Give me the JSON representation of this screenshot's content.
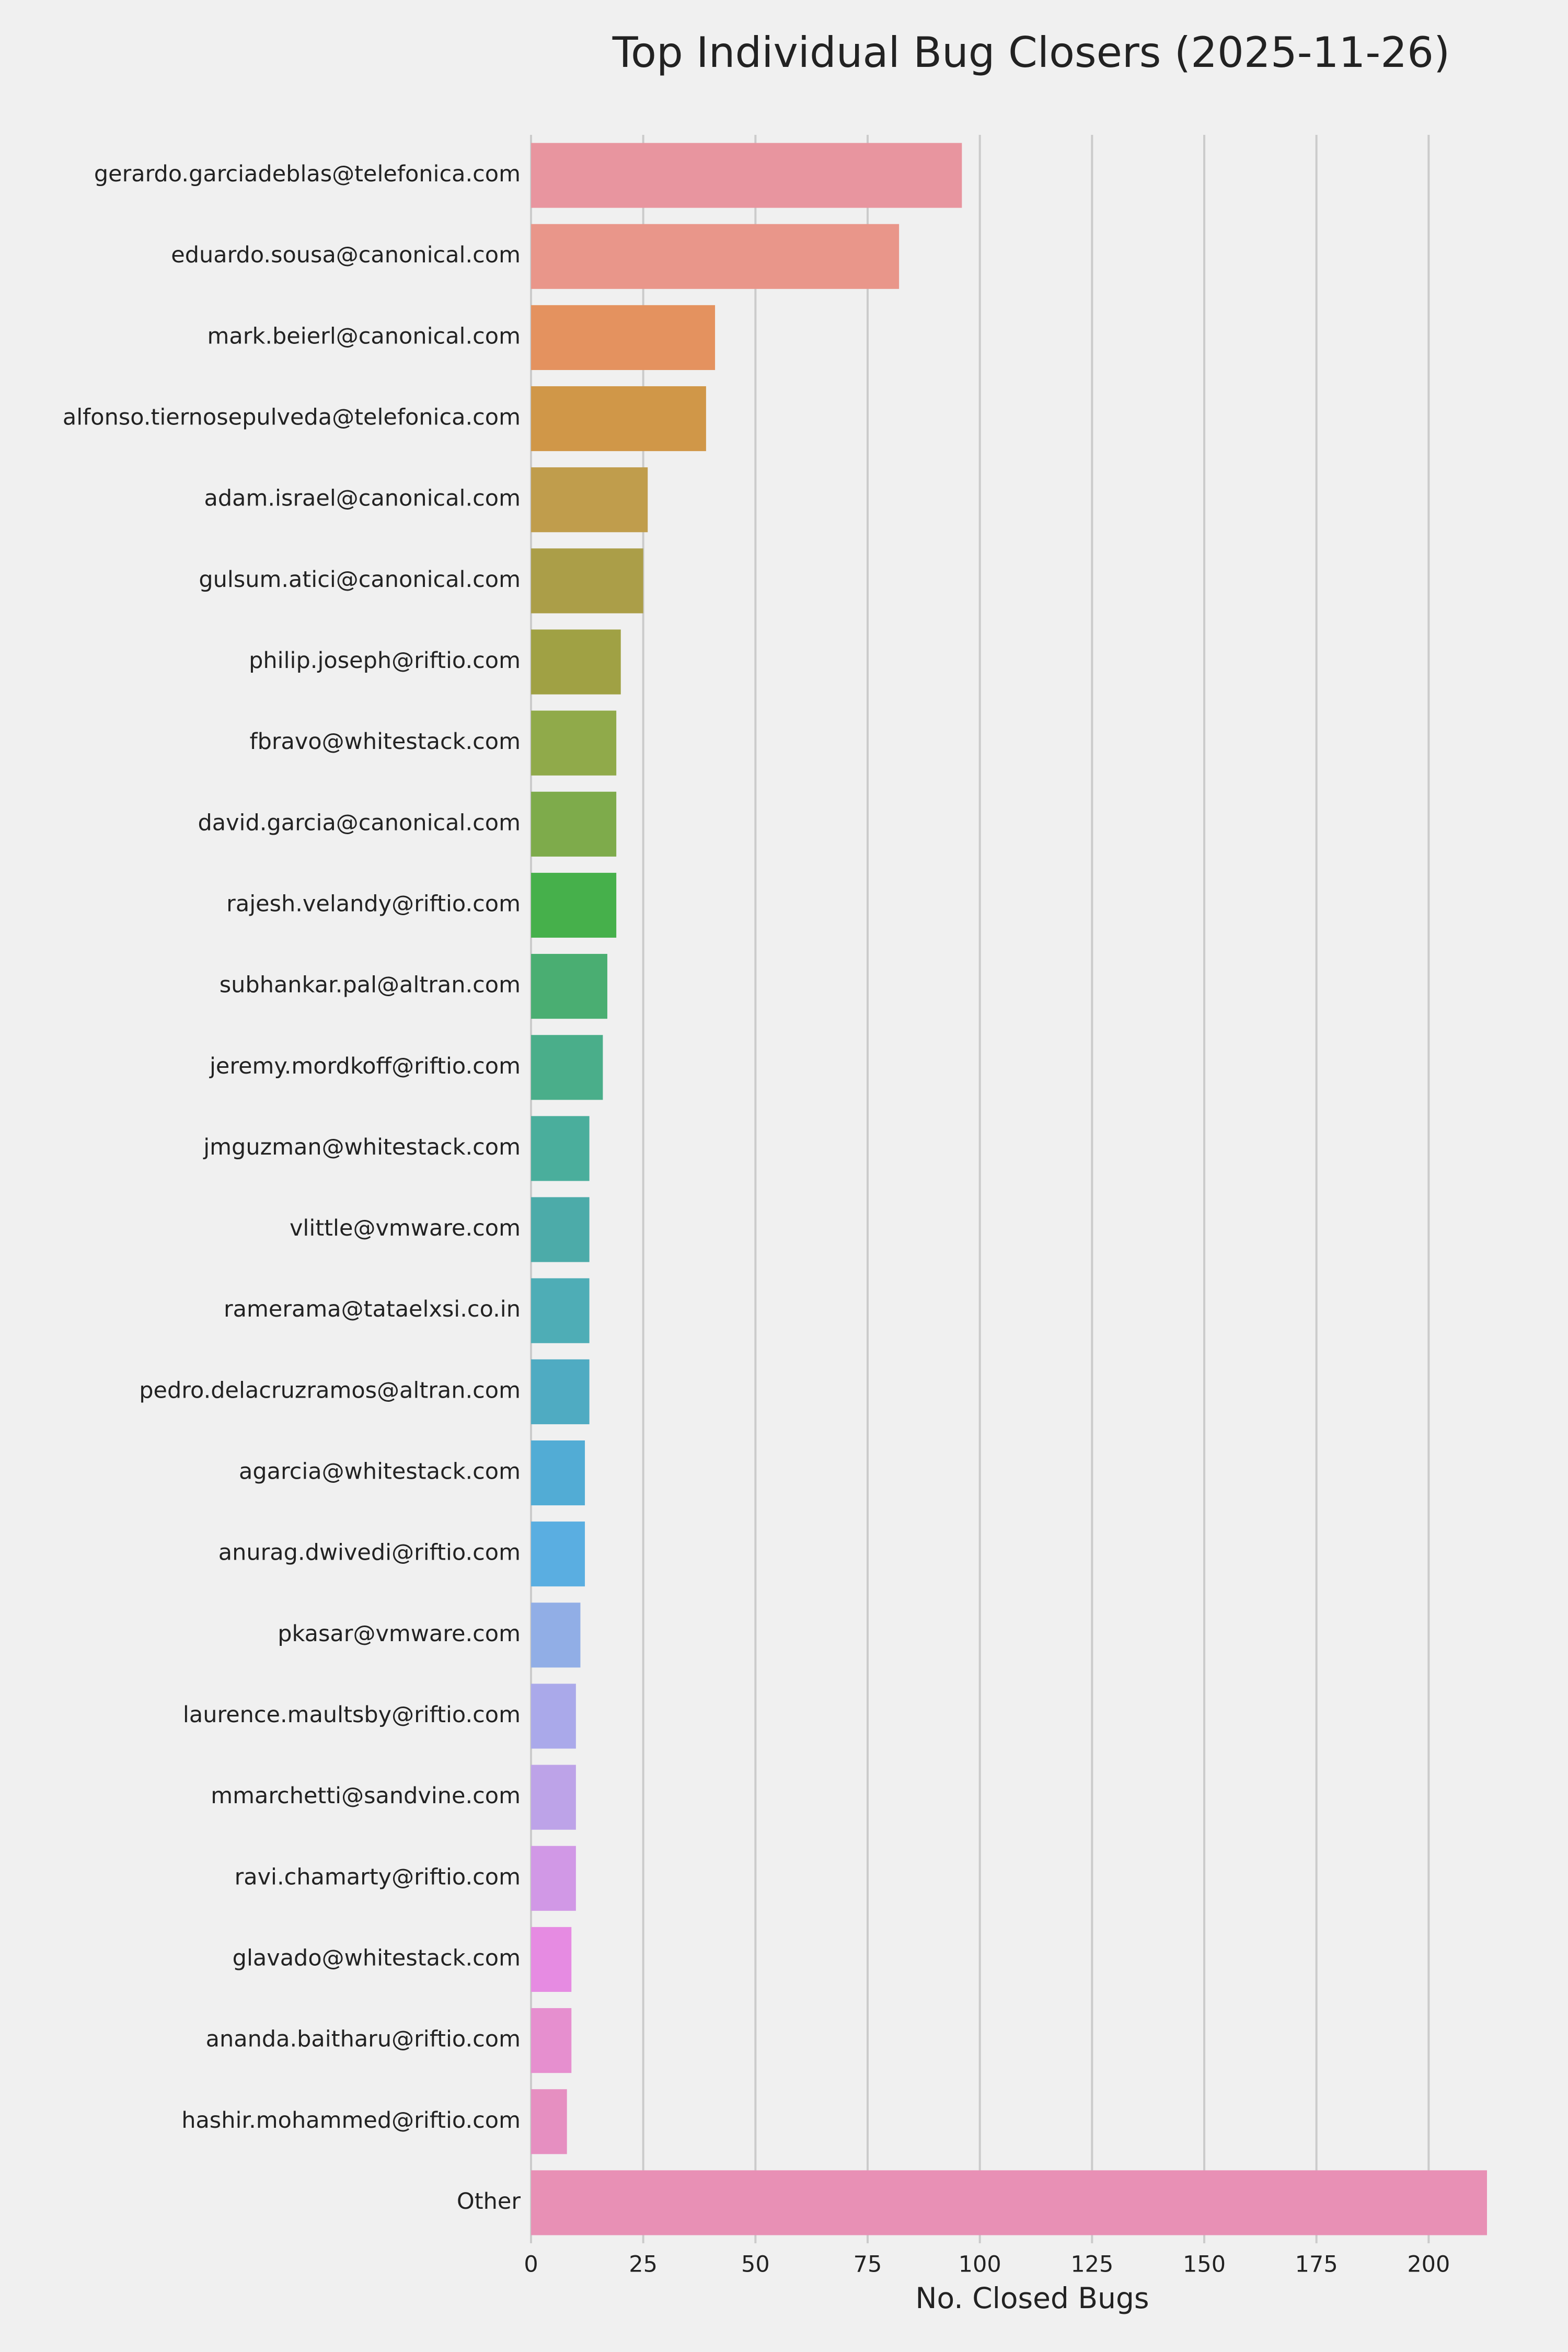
{
  "chart_data": {
    "type": "barh",
    "title": "Top Individual Bug Closers (2025-11-26)",
    "x_label": "No. Closed Bugs",
    "categories": [
      "gerardo.garciadeblas@telefonica.com",
      "eduardo.sousa@canonical.com",
      "mark.beierl@canonical.com",
      "alfonso.tiernosepulveda@telefonica.com",
      "adam.israel@canonical.com",
      "gulsum.atici@canonical.com",
      "philip.joseph@riftio.com",
      "fbravo@whitestack.com",
      "david.garcia@canonical.com",
      "rajesh.velandy@riftio.com",
      "subhankar.pal@altran.com",
      "jeremy.mordkoff@riftio.com",
      "jmguzman@whitestack.com",
      "vlittle@vmware.com",
      "ramerama@tataelxsi.co.in",
      "pedro.delacruzramos@altran.com",
      "agarcia@whitestack.com",
      "anurag.dwivedi@riftio.com",
      "pkasar@vmware.com",
      "laurence.maultsby@riftio.com",
      "mmarchetti@sandvine.com",
      "ravi.chamarty@riftio.com",
      "glavado@whitestack.com",
      "ananda.baitharu@riftio.com",
      "hashir.mohammed@riftio.com",
      "Other"
    ],
    "values": [
      96,
      82,
      41,
      39,
      26,
      25,
      20,
      19,
      19,
      19,
      17,
      16,
      13,
      13,
      13,
      13,
      12,
      12,
      11,
      10,
      10,
      10,
      9,
      9,
      8,
      213
    ],
    "colors": [
      "#e8959f",
      "#e9968a",
      "#e4925f",
      "#d09748",
      "#c09d4c",
      "#ab9e48",
      "#a0a144",
      "#90aa4a",
      "#7eab4b",
      "#46b04b",
      "#4aae72",
      "#4aae8a",
      "#4aae9c",
      "#4caba9",
      "#4eadb6",
      "#4fabc2",
      "#52acd5",
      "#5aaee1",
      "#91aee6",
      "#aaa9ea",
      "#bda3e8",
      "#d198e6",
      "#e68be2",
      "#e68fcf",
      "#e68fc1",
      "#e890b5"
    ],
    "xlim": [
      0,
      213
    ],
    "xticks": [
      0,
      25,
      50,
      75,
      100,
      125,
      150,
      175,
      200
    ],
    "grid": true
  }
}
